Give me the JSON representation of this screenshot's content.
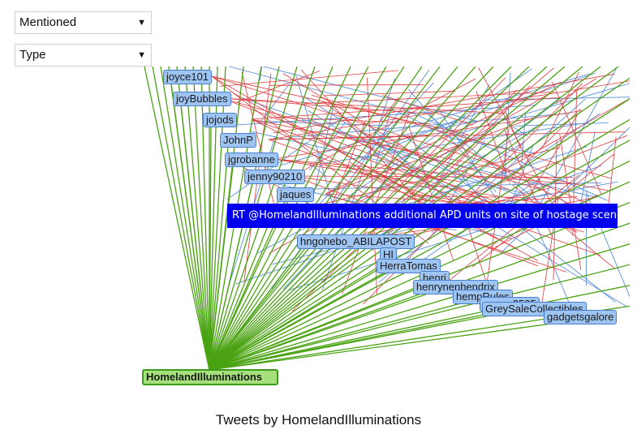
{
  "filters": {
    "mentioned": {
      "selected": "Mentioned"
    },
    "type": {
      "selected": "Type"
    }
  },
  "graph": {
    "hub": "HomelandIlluminations",
    "nodes": [
      "joyce101",
      "joyBubbles",
      "jojods",
      "JohnP",
      "jgrobanne",
      "jenny90210",
      "jaques",
      "hngohebo_ABILAPOST",
      "HI",
      "HerraTomas",
      "henri",
      "henrynenhendrix",
      "hempRules",
      "grr_wr2505",
      "GreySaleCollectibles",
      "gadgetsgalore"
    ],
    "tooltip": "RT @HomelandIlluminations additional APD units on site of hostage scene",
    "edge_colors": {
      "mention": "#4aa312",
      "red": "#e0393e",
      "blue": "#5b8fd8"
    }
  },
  "caption": "Tweets by HomelandIlluminations"
}
